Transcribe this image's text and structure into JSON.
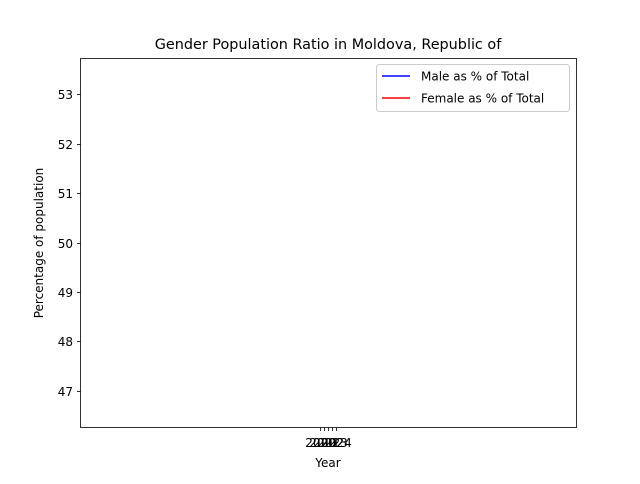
{
  "chart_data": {
    "type": "line",
    "title": "Gender Population Ratio in Moldova, Republic of",
    "xlabel": "Year",
    "ylabel": "Percentage of population",
    "ylim": [
      46.27,
      53.73
    ],
    "yticks": [
      47,
      48,
      49,
      50,
      51,
      52,
      53
    ],
    "xticks": [
      "2020",
      "2021",
      "2022",
      "2023",
      "2024"
    ],
    "grid": false,
    "legend_location": "top-right",
    "series": [
      {
        "name": "Male as % of Total",
        "color": "#0000ff",
        "values": []
      },
      {
        "name": "Female as % of Total",
        "color": "#ff0000",
        "values": []
      }
    ]
  }
}
